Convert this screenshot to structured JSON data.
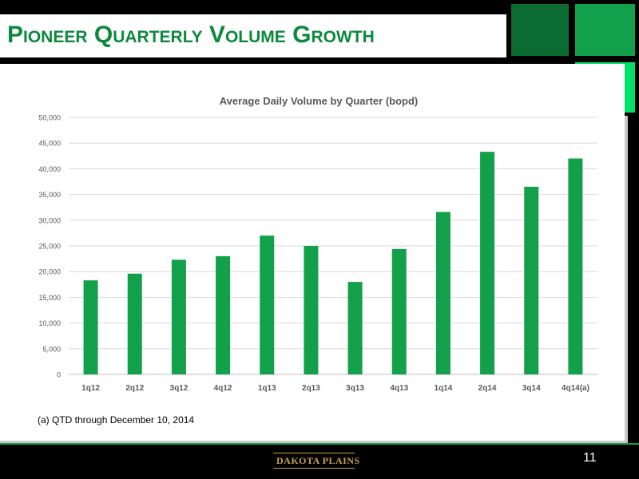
{
  "slide": {
    "title": "Pioneer Quarterly Volume Growth",
    "footnote": "(a) QTD through December 10, 2014",
    "page_number": "11",
    "logo_text": "DAKOTA PLAINS"
  },
  "colors": {
    "bar": "#13a04a",
    "title": "#0b8a3c",
    "square_dark": "#0b6b30",
    "square_mid": "#13a04a",
    "square_bright": "#00e06a"
  },
  "chart_data": {
    "type": "bar",
    "title": "Average Daily Volume by Quarter (bopd)",
    "xlabel": "",
    "ylabel": "",
    "categories": [
      "1q12",
      "2q12",
      "3q12",
      "4q12",
      "1q13",
      "2q13",
      "3q13",
      "4q13",
      "1q14",
      "2q14",
      "3q14",
      "4q14(a)"
    ],
    "values": [
      18300,
      19600,
      22300,
      23000,
      27000,
      25000,
      18000,
      24400,
      31600,
      43300,
      36500,
      42000
    ],
    "ylim": [
      0,
      50000
    ],
    "yticks": [
      0,
      5000,
      10000,
      15000,
      20000,
      25000,
      30000,
      35000,
      40000,
      45000,
      50000
    ],
    "ytick_labels": [
      "0",
      "5,000",
      "10,000",
      "15,000",
      "20,000",
      "25,000",
      "30,000",
      "35,000",
      "40,000",
      "45,000",
      "50,000"
    ],
    "grid": true,
    "legend": "none"
  }
}
